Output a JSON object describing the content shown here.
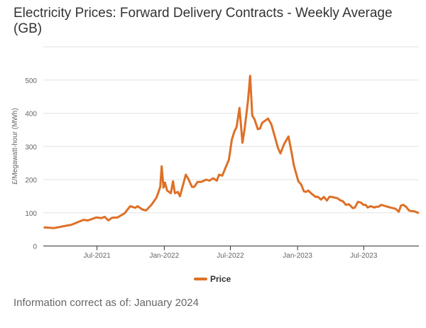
{
  "chart_data": {
    "type": "line",
    "title": "Electricity Prices: Forward Delivery Contracts - Weekly Average (GB)",
    "xlabel": "",
    "ylabel": "£/Megawatt-hour (MWh)",
    "ylim": [
      0,
      600
    ],
    "yticks": [
      0,
      100,
      200,
      300,
      400,
      500
    ],
    "xlim": [
      "2021-02-04",
      "2023-11-29"
    ],
    "xticks": [
      {
        "date": "2021-07-01",
        "label": "Jul-2021"
      },
      {
        "date": "2022-01-01",
        "label": "Jan-2022"
      },
      {
        "date": "2022-07-01",
        "label": "Jul-2022"
      },
      {
        "date": "2023-01-01",
        "label": "Jan-2023"
      },
      {
        "date": "2023-07-01",
        "label": "Jul-2023"
      }
    ],
    "grid": true,
    "legend_position": "bottom",
    "series": [
      {
        "name": "Price",
        "color": "#de7027",
        "points": [
          [
            "2021-02-05",
            56
          ],
          [
            "2021-03-05",
            54
          ],
          [
            "2021-04-03",
            60
          ],
          [
            "2021-04-22",
            64
          ],
          [
            "2021-05-12",
            73
          ],
          [
            "2021-05-25",
            79
          ],
          [
            "2021-06-06",
            77
          ],
          [
            "2021-06-29",
            86
          ],
          [
            "2021-07-13",
            84
          ],
          [
            "2021-07-22",
            88
          ],
          [
            "2021-08-01",
            77
          ],
          [
            "2021-08-11",
            85
          ],
          [
            "2021-08-26",
            86
          ],
          [
            "2021-09-15",
            99
          ],
          [
            "2021-09-24",
            112
          ],
          [
            "2021-09-30",
            120
          ],
          [
            "2021-10-14",
            115
          ],
          [
            "2021-10-20",
            120
          ],
          [
            "2021-11-02",
            110
          ],
          [
            "2021-11-12",
            107
          ],
          [
            "2021-11-27",
            124
          ],
          [
            "2021-12-11",
            146
          ],
          [
            "2021-12-21",
            178
          ],
          [
            "2021-12-25",
            240
          ],
          [
            "2021-12-30",
            176
          ],
          [
            "2022-01-03",
            191
          ],
          [
            "2022-01-09",
            167
          ],
          [
            "2022-01-19",
            159
          ],
          [
            "2022-01-25",
            195
          ],
          [
            "2022-01-30",
            159
          ],
          [
            "2022-02-07",
            163
          ],
          [
            "2022-02-13",
            150
          ],
          [
            "2022-02-19",
            174
          ],
          [
            "2022-03-01",
            215
          ],
          [
            "2022-03-08",
            202
          ],
          [
            "2022-03-18",
            178
          ],
          [
            "2022-03-24",
            178
          ],
          [
            "2022-04-02",
            193
          ],
          [
            "2022-04-12",
            193
          ],
          [
            "2022-04-26",
            200
          ],
          [
            "2022-05-05",
            197
          ],
          [
            "2022-05-15",
            204
          ],
          [
            "2022-05-25",
            197
          ],
          [
            "2022-05-31",
            215
          ],
          [
            "2022-06-09",
            212
          ],
          [
            "2022-06-17",
            234
          ],
          [
            "2022-06-27",
            260
          ],
          [
            "2022-07-05",
            320
          ],
          [
            "2022-07-12",
            345
          ],
          [
            "2022-07-18",
            358
          ],
          [
            "2022-07-26",
            416
          ],
          [
            "2022-08-03",
            311
          ],
          [
            "2022-08-09",
            352
          ],
          [
            "2022-08-18",
            436
          ],
          [
            "2022-08-24",
            513
          ],
          [
            "2022-08-30",
            393
          ],
          [
            "2022-09-05",
            382
          ],
          [
            "2022-09-14",
            352
          ],
          [
            "2022-09-20",
            354
          ],
          [
            "2022-09-26",
            371
          ],
          [
            "2022-10-12",
            384
          ],
          [
            "2022-10-21",
            367
          ],
          [
            "2022-10-31",
            328
          ],
          [
            "2022-11-08",
            296
          ],
          [
            "2022-11-15",
            279
          ],
          [
            "2022-11-25",
            307
          ],
          [
            "2022-12-07",
            330
          ],
          [
            "2022-12-15",
            285
          ],
          [
            "2022-12-22",
            242
          ],
          [
            "2023-01-03",
            195
          ],
          [
            "2023-01-11",
            185
          ],
          [
            "2023-01-18",
            165
          ],
          [
            "2023-01-24",
            163
          ],
          [
            "2023-01-30",
            167
          ],
          [
            "2023-02-09",
            157
          ],
          [
            "2023-02-19",
            148
          ],
          [
            "2023-02-26",
            148
          ],
          [
            "2023-03-06",
            140
          ],
          [
            "2023-03-14",
            148
          ],
          [
            "2023-03-22",
            137
          ],
          [
            "2023-03-29",
            148
          ],
          [
            "2023-04-04",
            148
          ],
          [
            "2023-04-20",
            144
          ],
          [
            "2023-04-29",
            137
          ],
          [
            "2023-05-05",
            135
          ],
          [
            "2023-05-13",
            124
          ],
          [
            "2023-05-21",
            126
          ],
          [
            "2023-05-27",
            120
          ],
          [
            "2023-06-01",
            114
          ],
          [
            "2023-06-07",
            116
          ],
          [
            "2023-06-15",
            133
          ],
          [
            "2023-06-23",
            131
          ],
          [
            "2023-06-30",
            124
          ],
          [
            "2023-07-06",
            124
          ],
          [
            "2023-07-12",
            116
          ],
          [
            "2023-07-20",
            120
          ],
          [
            "2023-07-30",
            116
          ],
          [
            "2023-08-04",
            118
          ],
          [
            "2023-08-10",
            118
          ],
          [
            "2023-08-18",
            124
          ],
          [
            "2023-08-30",
            120
          ],
          [
            "2023-09-12",
            116
          ],
          [
            "2023-09-26",
            112
          ],
          [
            "2023-10-05",
            103
          ],
          [
            "2023-10-11",
            122
          ],
          [
            "2023-10-17",
            124
          ],
          [
            "2023-10-25",
            118
          ],
          [
            "2023-11-02",
            107
          ],
          [
            "2023-11-09",
            105
          ],
          [
            "2023-11-15",
            105
          ],
          [
            "2023-11-29",
            99
          ]
        ]
      }
    ]
  },
  "footer": "Information correct as of: January 2024"
}
